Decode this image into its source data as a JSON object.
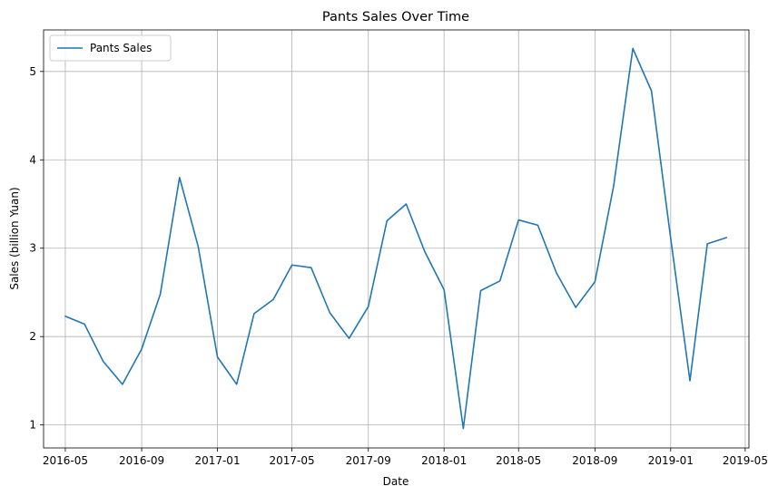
{
  "chart_data": {
    "type": "line",
    "title": "Pants Sales Over Time",
    "xlabel": "Date",
    "ylabel": "Sales (billion Yuan)",
    "x_ticks": [
      "2016-05",
      "2016-09",
      "2017-01",
      "2017-05",
      "2017-09",
      "2018-01",
      "2018-05",
      "2018-09",
      "2019-01",
      "2019-05"
    ],
    "y_ticks": [
      1,
      2,
      3,
      4,
      5
    ],
    "xlim": [
      "2016-03-27",
      "2019-05-07"
    ],
    "ylim": [
      0.74,
      5.47
    ],
    "grid": true,
    "legend_position": "top-left",
    "series": [
      {
        "name": "Pants Sales",
        "color": "#1f77b4",
        "x": [
          "2016-05",
          "2016-06",
          "2016-07",
          "2016-08",
          "2016-09",
          "2016-10",
          "2016-11",
          "2016-12",
          "2017-01",
          "2017-02",
          "2017-03",
          "2017-04",
          "2017-05",
          "2017-06",
          "2017-07",
          "2017-08",
          "2017-09",
          "2017-10",
          "2017-11",
          "2017-12",
          "2018-01",
          "2018-02",
          "2018-03",
          "2018-04",
          "2018-05",
          "2018-06",
          "2018-07",
          "2018-08",
          "2018-09",
          "2018-10",
          "2018-11",
          "2018-12",
          "2019-01",
          "2019-02",
          "2019-03",
          "2019-04"
        ],
        "values": [
          2.23,
          2.14,
          1.72,
          1.46,
          1.86,
          2.48,
          3.8,
          3.02,
          1.77,
          1.46,
          2.26,
          2.42,
          2.81,
          2.78,
          2.27,
          1.98,
          2.34,
          3.31,
          3.5,
          2.96,
          2.53,
          0.96,
          2.52,
          2.63,
          3.32,
          3.26,
          2.72,
          2.33,
          2.62,
          3.7,
          5.26,
          4.78,
          3.11,
          1.5,
          3.05,
          3.12
        ]
      }
    ]
  }
}
